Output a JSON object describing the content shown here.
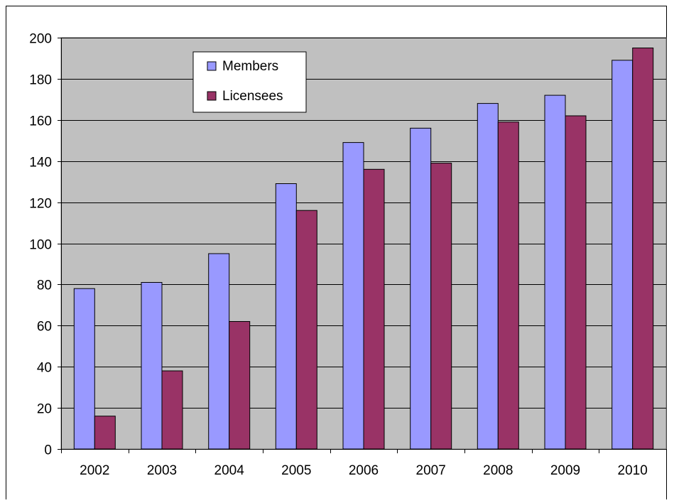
{
  "chart_data": {
    "type": "bar",
    "categories": [
      "2002",
      "2003",
      "2004",
      "2005",
      "2006",
      "2007",
      "2008",
      "2009",
      "2010"
    ],
    "series": [
      {
        "name": "Members",
        "color": "#9999ff",
        "values": [
          78,
          81,
          95,
          129,
          149,
          156,
          168,
          172,
          189
        ]
      },
      {
        "name": "Licensees",
        "color": "#993366",
        "values": [
          16,
          38,
          62,
          116,
          136,
          139,
          159,
          162,
          195
        ]
      }
    ],
    "ylim": [
      0,
      200
    ],
    "yticks": [
      0,
      20,
      40,
      60,
      80,
      100,
      120,
      140,
      160,
      180,
      200
    ],
    "grid": true,
    "legend_position": "top-left",
    "plot_background": "#c0c0c0"
  }
}
